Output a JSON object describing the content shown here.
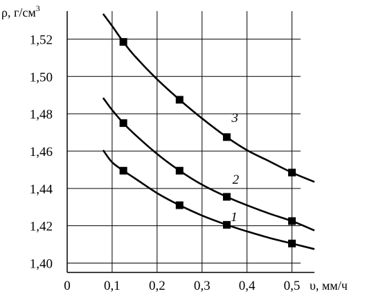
{
  "chart_data": {
    "type": "line",
    "ylabel": "ρ, г/см",
    "ylabel_sup": "3",
    "xlabel": "υ, мм/ч",
    "xlim": [
      0,
      0.55
    ],
    "ylim": [
      1.395,
      1.535
    ],
    "x_ticks": [
      "0",
      "0,1",
      "0,2",
      "0,3",
      "0,4",
      "0,5"
    ],
    "x_tick_values": [
      0,
      0.1,
      0.2,
      0.3,
      0.4,
      0.5
    ],
    "y_ticks": [
      "1,40",
      "1,42",
      "1,44",
      "1,46",
      "1,48",
      "1,50",
      "1,52"
    ],
    "y_tick_values": [
      1.4,
      1.42,
      1.44,
      1.46,
      1.48,
      1.5,
      1.52
    ],
    "grid": true,
    "series": [
      {
        "name": "1",
        "curve": [
          [
            0.08,
            1.4605
          ],
          [
            0.1,
            1.454
          ],
          [
            0.125,
            1.4495
          ],
          [
            0.15,
            1.4455
          ],
          [
            0.2,
            1.4375
          ],
          [
            0.25,
            1.431
          ],
          [
            0.3,
            1.4255
          ],
          [
            0.355,
            1.4205
          ],
          [
            0.4,
            1.417
          ],
          [
            0.45,
            1.4135
          ],
          [
            0.5,
            1.4105
          ],
          [
            0.55,
            1.4075
          ]
        ],
        "points": [
          [
            0.125,
            1.4495
          ],
          [
            0.25,
            1.431
          ],
          [
            0.355,
            1.4205
          ],
          [
            0.5,
            1.4105
          ]
        ]
      },
      {
        "name": "2",
        "curve": [
          [
            0.08,
            1.4885
          ],
          [
            0.1,
            1.482
          ],
          [
            0.125,
            1.475
          ],
          [
            0.15,
            1.469
          ],
          [
            0.2,
            1.4585
          ],
          [
            0.25,
            1.4495
          ],
          [
            0.3,
            1.442
          ],
          [
            0.355,
            1.4355
          ],
          [
            0.4,
            1.431
          ],
          [
            0.45,
            1.4265
          ],
          [
            0.5,
            1.4225
          ],
          [
            0.55,
            1.4175
          ]
        ],
        "points": [
          [
            0.125,
            1.475
          ],
          [
            0.25,
            1.4495
          ],
          [
            0.355,
            1.4355
          ],
          [
            0.5,
            1.4225
          ]
        ]
      },
      {
        "name": "3",
        "curve": [
          [
            0.08,
            1.5335
          ],
          [
            0.1,
            1.527
          ],
          [
            0.125,
            1.5185
          ],
          [
            0.15,
            1.511
          ],
          [
            0.2,
            1.4985
          ],
          [
            0.25,
            1.4875
          ],
          [
            0.3,
            1.4775
          ],
          [
            0.355,
            1.4675
          ],
          [
            0.4,
            1.4605
          ],
          [
            0.45,
            1.4545
          ],
          [
            0.5,
            1.4485
          ],
          [
            0.55,
            1.4435
          ]
        ],
        "points": [
          [
            0.125,
            1.5185
          ],
          [
            0.25,
            1.4875
          ],
          [
            0.355,
            1.4675
          ],
          [
            0.5,
            1.4485
          ]
        ]
      }
    ]
  }
}
